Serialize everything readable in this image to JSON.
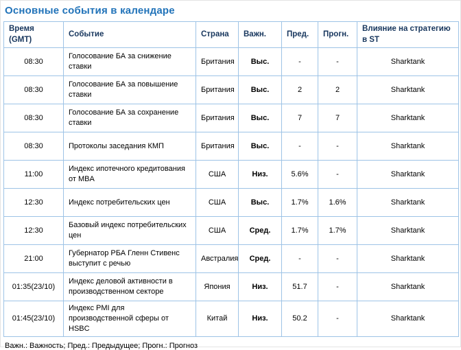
{
  "page": {
    "title": "Основные события в календаре",
    "footnote": "Важн.: Важность; Пред.: Предыдущее; Прогн.: Прогноз"
  },
  "colors": {
    "accent": "#2173B9",
    "table_border": "#9DC3E6",
    "header_text": "#17365D"
  },
  "table": {
    "columns": [
      "Время (GMT)",
      "Событие",
      "Страна",
      "Важн.",
      "Пред.",
      "Прогн.",
      "Влияние на стратегию в ST"
    ],
    "rows": [
      {
        "time": "08:30",
        "event": "Голосование БА за снижение ставки",
        "country": "Британия",
        "importance": "Выс.",
        "previous": "-",
        "forecast": "-",
        "impact": "Sharktank"
      },
      {
        "time": "08:30",
        "event": "Голосование БА за повышение ставки",
        "country": "Британия",
        "importance": "Выс.",
        "previous": "2",
        "forecast": "2",
        "impact": "Sharktank"
      },
      {
        "time": "08:30",
        "event": "Голосование БА за сохранение ставки",
        "country": "Британия",
        "importance": "Выс.",
        "previous": "7",
        "forecast": "7",
        "impact": "Sharktank"
      },
      {
        "time": "08:30",
        "event": "Протоколы заседания КМП",
        "country": "Британия",
        "importance": "Выс.",
        "previous": "-",
        "forecast": "-",
        "impact": "Sharktank"
      },
      {
        "time": "11:00",
        "event": "Индекс ипотечного кредитования от MBA",
        "country": "США",
        "importance": "Низ.",
        "previous": "5.6%",
        "forecast": "-",
        "impact": "Sharktank"
      },
      {
        "time": "12:30",
        "event": "Индекс потребительских цен",
        "country": "США",
        "importance": "Выс.",
        "previous": "1.7%",
        "forecast": "1.6%",
        "impact": "Sharktank"
      },
      {
        "time": "12:30",
        "event": "Базовый индекс потребительских цен",
        "country": "США",
        "importance": "Сред.",
        "previous": "1.7%",
        "forecast": "1.7%",
        "impact": "Sharktank"
      },
      {
        "time": "21:00",
        "event": "Губернатор РБА Гленн Стивенс выступит с речью",
        "country": "Австралия",
        "importance": "Сред.",
        "previous": "-",
        "forecast": "-",
        "impact": "Sharktank"
      },
      {
        "time": "01:35(23/10)",
        "event": "Индекс деловой активности в производственном секторе",
        "country": "Япония",
        "importance": "Низ.",
        "previous": "51.7",
        "forecast": "-",
        "impact": "Sharktank"
      },
      {
        "time": "01:45(23/10)",
        "event": "Индекс PMI для производственной сферы от HSBC",
        "country": "Китай",
        "importance": "Низ.",
        "previous": "50.2",
        "forecast": "-",
        "impact": "Sharktank"
      }
    ]
  }
}
